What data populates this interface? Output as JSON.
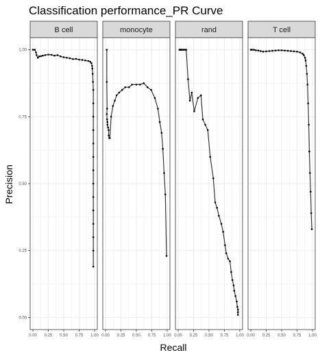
{
  "chart_data": {
    "type": "line",
    "title": "Classification performance_PR Curve",
    "xlabel": "Recall",
    "ylabel": "Precision",
    "xlim": [
      0,
      1
    ],
    "ylim": [
      0,
      1
    ],
    "x_ticks": [
      "0.00",
      "0.25",
      "0.50",
      "0.75",
      "1.00"
    ],
    "x_tick_values": [
      0,
      0.25,
      0.5,
      0.75,
      1.0
    ],
    "y_ticks": [
      "0.00",
      "0.25",
      "0.50",
      "0.75",
      "1.00"
    ],
    "y_tick_values": [
      0,
      0.25,
      0.5,
      0.75,
      1.0
    ],
    "grid": true,
    "colors": {
      "line": "#333333",
      "point": "#000000",
      "strip": "#d9d9d9",
      "grid": "#ebebeb"
    },
    "panels": [
      {
        "name": "B cell",
        "x": [
          0.0,
          0.03,
          0.05,
          0.06,
          0.08,
          0.1,
          0.13,
          0.16,
          0.2,
          0.25,
          0.3,
          0.35,
          0.4,
          0.45,
          0.5,
          0.55,
          0.6,
          0.65,
          0.7,
          0.75,
          0.8,
          0.85,
          0.9,
          0.93,
          0.95,
          0.96,
          0.965,
          0.97,
          0.975,
          0.98,
          0.98,
          0.98,
          0.98,
          0.98,
          0.98,
          0.98,
          0.98,
          0.98,
          0.98,
          0.98,
          0.98,
          0.98,
          0.98
        ],
        "y": [
          1.0,
          1.0,
          0.99,
          0.98,
          0.97,
          0.975,
          0.976,
          0.978,
          0.98,
          0.982,
          0.981,
          0.978,
          0.98,
          0.975,
          0.972,
          0.97,
          0.968,
          0.965,
          0.966,
          0.963,
          0.962,
          0.96,
          0.958,
          0.955,
          0.95,
          0.94,
          0.93,
          0.91,
          0.88,
          0.85,
          0.8,
          0.75,
          0.7,
          0.65,
          0.6,
          0.55,
          0.5,
          0.45,
          0.4,
          0.35,
          0.3,
          0.25,
          0.19
        ]
      },
      {
        "name": "monocyte",
        "x": [
          0.02,
          0.02,
          0.025,
          0.02,
          0.025,
          0.03,
          0.03,
          0.04,
          0.05,
          0.05,
          0.06,
          0.07,
          0.09,
          0.12,
          0.15,
          0.18,
          0.22,
          0.27,
          0.32,
          0.38,
          0.43,
          0.5,
          0.56,
          0.62,
          0.68,
          0.74,
          0.8,
          0.85,
          0.88,
          0.91,
          0.93,
          0.95,
          0.97,
          0.99
        ],
        "y": [
          1.0,
          0.88,
          0.78,
          0.76,
          0.74,
          0.73,
          0.72,
          0.71,
          0.7,
          0.68,
          0.67,
          0.67,
          0.75,
          0.79,
          0.81,
          0.83,
          0.84,
          0.85,
          0.86,
          0.86,
          0.87,
          0.87,
          0.87,
          0.875,
          0.86,
          0.85,
          0.82,
          0.78,
          0.73,
          0.69,
          0.63,
          0.54,
          0.46,
          0.23
        ]
      },
      {
        "name": "rand",
        "x": [
          0.02,
          0.03,
          0.04,
          0.05,
          0.06,
          0.07,
          0.09,
          0.11,
          0.13,
          0.16,
          0.19,
          0.22,
          0.26,
          0.32,
          0.37,
          0.4,
          0.44,
          0.48,
          0.52,
          0.57,
          0.6,
          0.63,
          0.66,
          0.7,
          0.73,
          0.76,
          0.78,
          0.81,
          0.84,
          0.86,
          0.88,
          0.9,
          0.91,
          0.93,
          0.95,
          0.96,
          0.97,
          0.97,
          0.97
        ],
        "y": [
          1.0,
          1.0,
          1.0,
          1.0,
          1.0,
          1.0,
          1.0,
          1.0,
          1.0,
          0.89,
          0.81,
          0.84,
          0.77,
          0.82,
          0.83,
          0.74,
          0.72,
          0.7,
          0.6,
          0.52,
          0.43,
          0.41,
          0.38,
          0.35,
          0.32,
          0.27,
          0.24,
          0.22,
          0.21,
          0.17,
          0.14,
          0.12,
          0.1,
          0.08,
          0.06,
          0.04,
          0.03,
          0.02,
          0.01
        ]
      },
      {
        "name": "T cell",
        "x": [
          0.0,
          0.02,
          0.05,
          0.08,
          0.12,
          0.16,
          0.2,
          0.25,
          0.3,
          0.35,
          0.4,
          0.45,
          0.5,
          0.55,
          0.6,
          0.65,
          0.7,
          0.75,
          0.8,
          0.84,
          0.86,
          0.88,
          0.89,
          0.9,
          0.91,
          0.92,
          0.93,
          0.94,
          0.95,
          0.96,
          0.97,
          0.98,
          0.99
        ],
        "y": [
          1.0,
          1.0,
          1.0,
          0.998,
          0.997,
          0.995,
          0.993,
          0.994,
          0.995,
          0.996,
          0.997,
          0.998,
          0.998,
          0.997,
          0.996,
          0.995,
          0.994,
          0.993,
          0.99,
          0.985,
          0.98,
          0.97,
          0.96,
          0.94,
          0.91,
          0.87,
          0.8,
          0.72,
          0.62,
          0.54,
          0.47,
          0.39,
          0.33
        ]
      }
    ]
  }
}
